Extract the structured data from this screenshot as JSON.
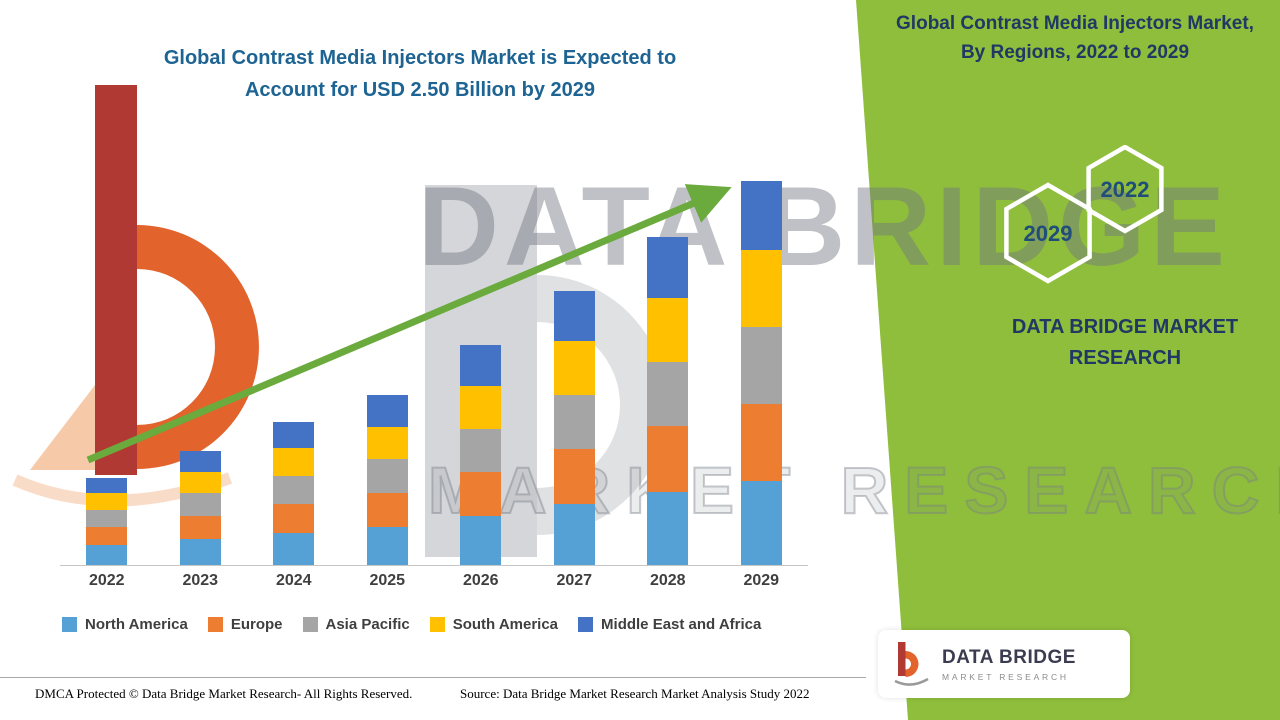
{
  "title": "Global Contrast Media Injectors Market is Expected to Account for USD 2.50 Billion by 2029",
  "side_panel": {
    "title": "Global Contrast Media Injectors Market, By Regions, 2022 to 2029",
    "hexagon_front": "2029",
    "hexagon_back": "2022",
    "brand": "DATA BRIDGE MARKET RESEARCH",
    "bg_color": "#8FBE3C"
  },
  "watermark": {
    "line1": "DATA BRIDGE",
    "line2": "MARKET RESEARCH"
  },
  "chart_data": {
    "type": "bar",
    "stacked": true,
    "title": "Global Contrast Media Injectors Market, By Regions, 2022 to 2029",
    "unit": "USD Billion",
    "categories": [
      "2022",
      "2023",
      "2024",
      "2025",
      "2026",
      "2027",
      "2028",
      "2029"
    ],
    "series": [
      {
        "name": "North America",
        "color": "#55A1D6",
        "values": [
          0.13,
          0.17,
          0.21,
          0.25,
          0.32,
          0.4,
          0.48,
          0.55
        ]
      },
      {
        "name": "Europe",
        "color": "#ED7D31",
        "values": [
          0.12,
          0.15,
          0.19,
          0.22,
          0.29,
          0.36,
          0.43,
          0.5
        ]
      },
      {
        "name": "Asia Pacific",
        "color": "#A5A5A5",
        "values": [
          0.11,
          0.15,
          0.18,
          0.22,
          0.28,
          0.35,
          0.42,
          0.5
        ]
      },
      {
        "name": "South America",
        "color": "#FFC000",
        "values": [
          0.11,
          0.14,
          0.18,
          0.21,
          0.28,
          0.35,
          0.42,
          0.5
        ]
      },
      {
        "name": "Middle East and Africa",
        "color": "#4472C4",
        "values": [
          0.1,
          0.14,
          0.17,
          0.21,
          0.27,
          0.33,
          0.4,
          0.45
        ]
      }
    ],
    "totals": [
      0.57,
      0.75,
      0.93,
      1.11,
      1.44,
      1.79,
      2.15,
      2.5
    ],
    "ylim": [
      0,
      2.6
    ],
    "grid": false,
    "legend_position": "bottom",
    "trend_arrow": true
  },
  "footer": {
    "dmca": "DMCA Protected © Data Bridge Market Research- All Rights Reserved.",
    "source": "Source: Data Bridge Market Research Market Analysis Study 2022"
  },
  "logo": {
    "name": "DATA BRIDGE",
    "tagline": "MARKET RESEARCH"
  },
  "colors": {
    "accent_green": "#8FBE3C",
    "arrow_green": "#6BAA3D",
    "title_blue": "#1E6493",
    "navy": "#203864"
  }
}
